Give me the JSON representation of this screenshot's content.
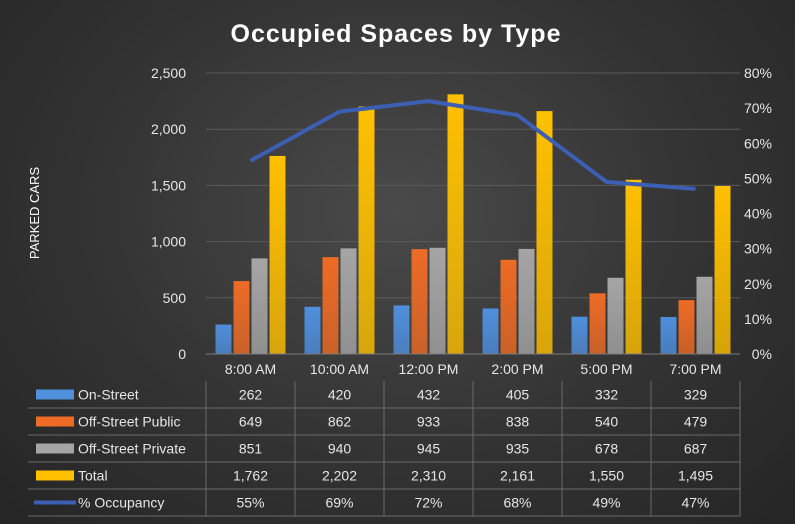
{
  "chart_data": {
    "type": "bar",
    "title": "Occupied Spaces by Type",
    "ylabel": "PARKED CARS",
    "categories": [
      "8:00 AM",
      "10:00 AM",
      "12:00 PM",
      "2:00 PM",
      "5:00 PM",
      "7:00 PM"
    ],
    "ylim": [
      0,
      2500
    ],
    "yticks": [
      "0",
      "500",
      "1,000",
      "1,500",
      "2,000",
      "2,500"
    ],
    "y2lim": [
      0,
      0.8
    ],
    "y2ticks": [
      "0%",
      "10%",
      "20%",
      "30%",
      "40%",
      "50%",
      "60%",
      "70%",
      "80%"
    ],
    "series": [
      {
        "name": "On-Street",
        "kind": "bar",
        "color": "#4f8fdc",
        "values": [
          262,
          420,
          432,
          405,
          332,
          329
        ],
        "labels": [
          "262",
          "420",
          "432",
          "405",
          "332",
          "329"
        ]
      },
      {
        "name": "Off-Street Public",
        "kind": "bar",
        "color": "#ed6b25",
        "values": [
          649,
          862,
          933,
          838,
          540,
          479
        ],
        "labels": [
          "649",
          "862",
          "933",
          "838",
          "540",
          "479"
        ]
      },
      {
        "name": "Off-Street Private",
        "kind": "bar",
        "color": "#a5a5a5",
        "values": [
          851,
          940,
          945,
          935,
          678,
          687
        ],
        "labels": [
          "851",
          "940",
          "945",
          "935",
          "678",
          "687"
        ]
      },
      {
        "name": "Total",
        "kind": "bar",
        "color": "#ffc000",
        "values": [
          1762,
          2202,
          2310,
          2161,
          1550,
          1495
        ],
        "labels": [
          "1,762",
          "2,202",
          "2,310",
          "2,161",
          "1,550",
          "1,495"
        ]
      },
      {
        "name": "% Occupancy",
        "kind": "line",
        "axis": "secondary",
        "color": "#3c5fb4",
        "values": [
          0.55,
          0.69,
          0.72,
          0.68,
          0.49,
          0.47
        ],
        "labels": [
          "55%",
          "69%",
          "72%",
          "68%",
          "49%",
          "47%"
        ]
      }
    ]
  }
}
